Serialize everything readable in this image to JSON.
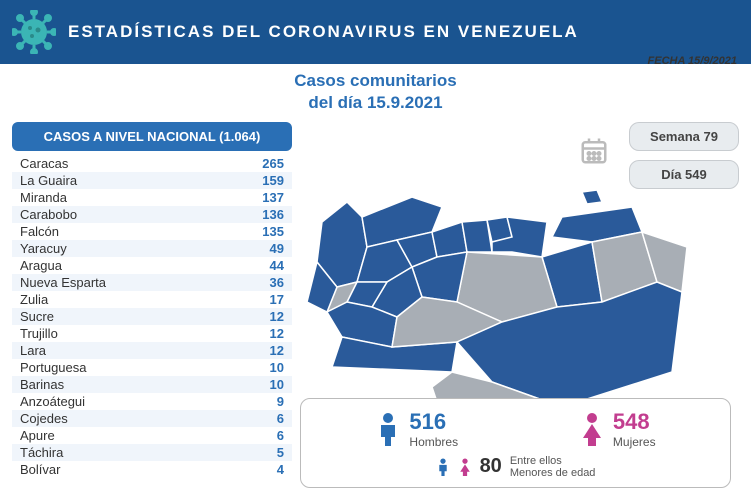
{
  "header": {
    "title": "ESTADÍSTICAS DEL CORONAVIRUS EN VENEZUELA",
    "bg_color": "#1a5490",
    "text_color": "#ffffff",
    "virus_color": "#3bb5b5"
  },
  "subtitle_line1": "Casos comunitarios",
  "subtitle_line2": "del día 15.9.2021",
  "subtitle_color": "#2a6fb5",
  "date_label": "FECHA 15/9/2021",
  "pills": {
    "week_label": "Semana 79",
    "day_label": "Día 549"
  },
  "table": {
    "header": "CASOS A NIVEL NACIONAL (1.064)",
    "header_bg": "#2a6fb5",
    "value_color": "#2a6fb5",
    "alt_bg": "#f0f5fb",
    "rows": [
      {
        "name": "Caracas",
        "value": 265
      },
      {
        "name": "La Guaira",
        "value": 159
      },
      {
        "name": "Miranda",
        "value": 137
      },
      {
        "name": "Carabobo",
        "value": 136
      },
      {
        "name": "Falcón",
        "value": 135
      },
      {
        "name": "Yaracuy",
        "value": 49
      },
      {
        "name": "Aragua",
        "value": 44
      },
      {
        "name": "Nueva Esparta",
        "value": 36
      },
      {
        "name": "Zulia",
        "value": 17
      },
      {
        "name": "Sucre",
        "value": 12
      },
      {
        "name": "Trujillo",
        "value": 12
      },
      {
        "name": "Lara",
        "value": 12
      },
      {
        "name": "Portuguesa",
        "value": 10
      },
      {
        "name": "Barinas",
        "value": 10
      },
      {
        "name": "Anzoátegui",
        "value": 9
      },
      {
        "name": "Cojedes",
        "value": 6
      },
      {
        "name": "Apure",
        "value": 6
      },
      {
        "name": "Táchira",
        "value": 5
      },
      {
        "name": "Bolívar",
        "value": 4
      }
    ]
  },
  "map": {
    "highlight_color": "#2a5a9a",
    "inactive_color": "#a8aeb5",
    "border_color": "#ffffff"
  },
  "legend": {
    "men": {
      "count": 516,
      "label": "Hombres",
      "color": "#2a6fb5"
    },
    "women": {
      "count": 548,
      "label": "Mujeres",
      "color": "#c23d8f"
    },
    "minors_prefix": "Entre ellos",
    "minors_count": 80,
    "minors_label": "Menores de edad"
  }
}
